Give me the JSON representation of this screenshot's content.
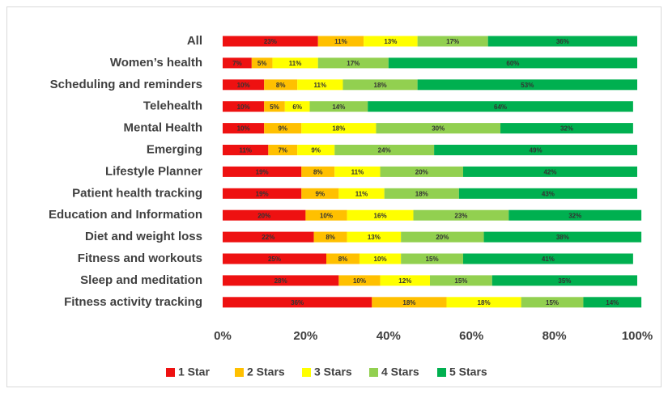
{
  "chart_data": {
    "type": "stacked-bar",
    "orientation": "horizontal",
    "categories": [
      "All",
      "Women’s health",
      "Scheduling and reminders",
      "Telehealth",
      "Mental Health",
      "Emerging",
      "Lifestyle Planner",
      "Patient health tracking",
      "Education and Information",
      "Diet and weight loss",
      "Fitness and workouts",
      "Sleep and meditation",
      "Fitness activity tracking"
    ],
    "series": [
      {
        "name": "1 Star",
        "color": "#ee1111",
        "values": [
          23,
          7,
          10,
          10,
          10,
          11,
          19,
          19,
          20,
          22,
          25,
          28,
          36
        ],
        "value_labels": [
          "23%",
          "7%",
          "10%",
          "10%",
          "10%",
          "11%",
          "19%",
          "19%",
          "20%",
          "22%",
          "25%",
          "28%",
          "36%"
        ]
      },
      {
        "name": "2 Stars",
        "color": "#ffc000",
        "values": [
          11,
          5,
          8,
          5,
          9,
          7,
          8,
          9,
          10,
          8,
          8,
          10,
          18
        ],
        "value_labels": [
          "11%",
          "5%",
          "8%",
          "5%",
          "9%",
          "7%",
          "8%",
          "9%",
          "10%",
          "8%",
          "8%",
          "10%",
          "18%"
        ]
      },
      {
        "name": "3 Stars",
        "color": "#ffff00",
        "values": [
          13,
          11,
          11,
          6,
          18,
          9,
          11,
          11,
          16,
          13,
          10,
          12,
          18
        ],
        "value_labels": [
          "13%",
          "11%",
          "11%",
          "6%",
          "18%",
          "9%",
          "11%",
          "11%",
          "16%",
          "13%",
          "10%",
          "12%",
          "18%"
        ]
      },
      {
        "name": "4 Stars",
        "color": "#92d050",
        "values": [
          17,
          17,
          18,
          14,
          30,
          24,
          20,
          18,
          23,
          20,
          15,
          15,
          15
        ],
        "value_labels": [
          "17%",
          "17%",
          "18%",
          "14%",
          "30%",
          "24%",
          "20%",
          "18%",
          "23%",
          "20%",
          "15%",
          "15%",
          "15%"
        ]
      },
      {
        "name": "5 Stars",
        "color": "#00b050",
        "values": [
          36,
          60,
          53,
          64,
          32,
          49,
          42,
          43,
          32,
          38,
          41,
          35,
          14
        ],
        "value_labels": [
          "36%",
          "60%",
          "53%",
          "64%",
          "32%",
          "49%",
          "42%",
          "43%",
          "32%",
          "38%",
          "41%",
          "35%",
          "14%"
        ]
      }
    ],
    "xlim": [
      0,
      100
    ],
    "xticks": [
      {
        "value": 0,
        "label": "0%"
      },
      {
        "value": 20,
        "label": "20%"
      },
      {
        "value": 40,
        "label": "40%"
      },
      {
        "value": 60,
        "label": "60%"
      },
      {
        "value": 80,
        "label": "80%"
      },
      {
        "value": 100,
        "label": "100%"
      }
    ],
    "grid": false,
    "legend": "bottom"
  }
}
